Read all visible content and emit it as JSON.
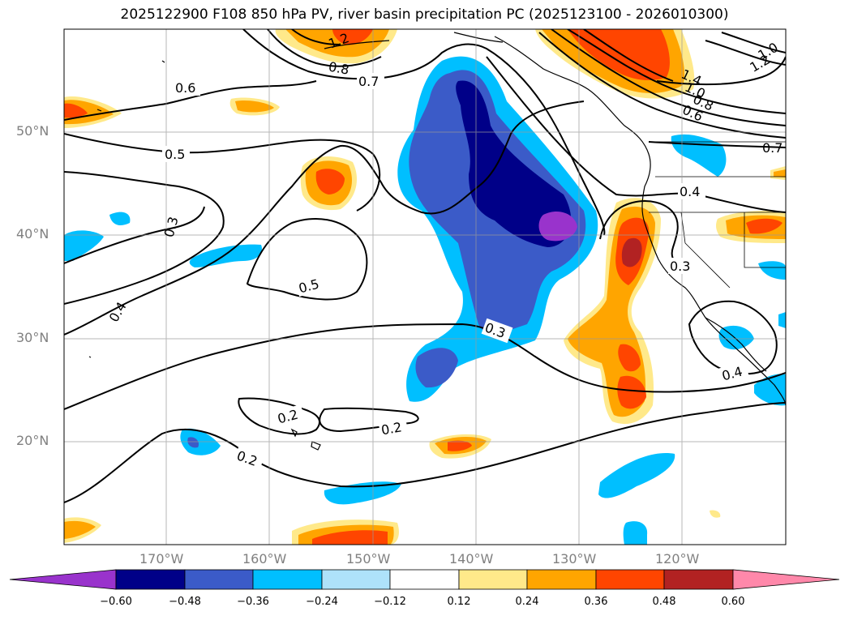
{
  "title": "2025122900 F108 850 hPa PV, river basin precipitation PC (2025123100 - 2026010300)",
  "map": {
    "projection": "PlateCarree",
    "lon_range": [
      -180,
      -110
    ],
    "lat_range": [
      10,
      60
    ],
    "grid": true,
    "lat_labels": [
      "50°N",
      "40°N",
      "30°N",
      "20°N"
    ],
    "lon_labels": [
      "170°W",
      "160°W",
      "150°W",
      "140°W",
      "130°W",
      "120°W"
    ],
    "contour_labels": [
      "0.6",
      "0.5",
      "0.3",
      "0.4",
      "0.5",
      "0.7",
      "0.8",
      "1.2",
      "1.4",
      "1.0",
      "0.8",
      "0.6",
      "0.7",
      "0.4",
      "0.3",
      "0.3",
      "0.2",
      "0.2",
      "0.2",
      "0.4",
      "1.0",
      "1.2"
    ]
  },
  "colorbar": {
    "ticks": [
      "−0.60",
      "−0.48",
      "−0.36",
      "−0.24",
      "−0.12",
      "0.12",
      "0.24",
      "0.36",
      "0.48",
      "0.60"
    ],
    "colors": {
      "lt_neg060": "#9933cc",
      "neg060_neg048": "#000088",
      "neg048_neg036": "#3b5bc8",
      "neg036_neg024": "#00bfff",
      "neg024_neg012": "#aee2fa",
      "neg012_012": "#ffffff",
      "p012_p024": "#ffe98a",
      "p024_p036": "#ffa500",
      "p036_p048": "#ff4500",
      "p048_p060": "#b22222",
      "gt_060": "#ff88aa"
    }
  }
}
